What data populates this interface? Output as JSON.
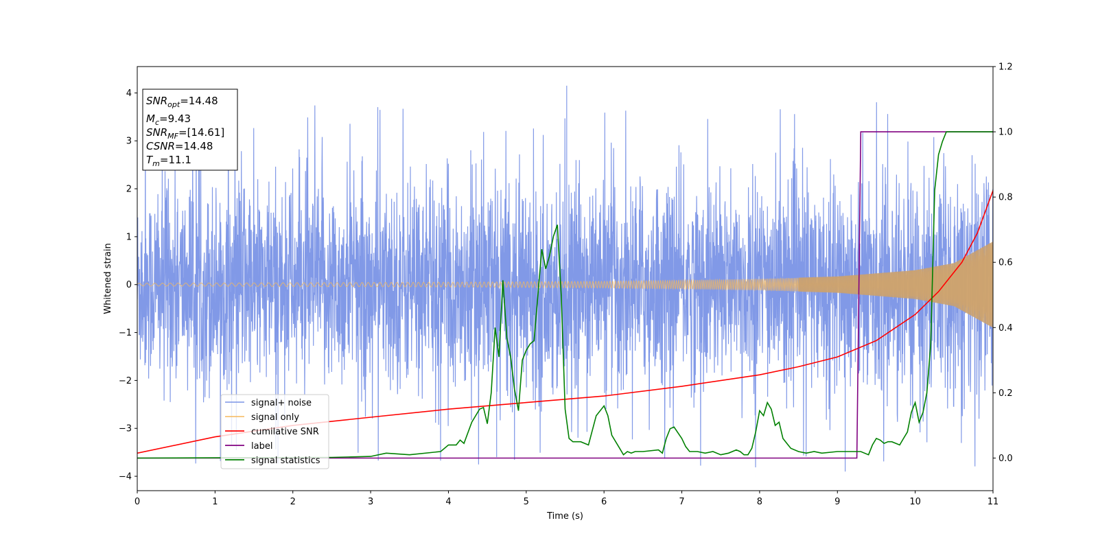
{
  "chart_data": {
    "type": "line",
    "xlabel": "Time (s)",
    "ylabel": "Whitened strain",
    "xlim": [
      0,
      11
    ],
    "ylim_left": [
      -4.3,
      4.55
    ],
    "ylim_right": [
      -0.1,
      1.2
    ],
    "x_ticks": [
      0,
      1,
      2,
      3,
      4,
      5,
      6,
      7,
      8,
      9,
      10,
      11
    ],
    "y_ticks_left": [
      -4,
      -3,
      -2,
      -1,
      0,
      1,
      2,
      3,
      4
    ],
    "y_ticks_right": [
      "0.0",
      "0.2",
      "0.4",
      "0.6",
      "0.8",
      "1.0",
      "1.2"
    ],
    "grid": false,
    "legend_position": "lower-left",
    "annotation": {
      "snr_opt": {
        "base": "SNR",
        "sub": "opt",
        "value": "=14.48"
      },
      "mc": {
        "base": "M",
        "sub": "c",
        "value": "=9.43"
      },
      "snr_mf": {
        "base": "SNR",
        "sub": "MF",
        "value": "=[14.61]"
      },
      "csnr": {
        "base": "CSNR",
        "sub": "",
        "value": "=14.48"
      },
      "tm": {
        "base": "T",
        "sub": "m",
        "value": "=11.1"
      }
    },
    "series": [
      {
        "name": "signal+ noise",
        "color": "#7a93e6",
        "axis": "left",
        "description_values": {
          "noise_sigma": 1.0,
          "typical_peak": 3.0,
          "max": 4.15,
          "min": -3.9
        }
      },
      {
        "name": "signal only",
        "color": "#f5b85c",
        "axis": "left",
        "envelope": {
          "x": [
            0,
            2,
            4,
            6,
            7,
            8,
            9,
            10,
            10.5,
            11
          ],
          "amplitude": [
            0.03,
            0.04,
            0.05,
            0.07,
            0.09,
            0.12,
            0.17,
            0.3,
            0.45,
            0.9
          ]
        }
      },
      {
        "name": "cumilative SNR",
        "color": "#ff0000",
        "axis": "right",
        "x": [
          0,
          1,
          2,
          3,
          4,
          5,
          6,
          7,
          8,
          8.5,
          9,
          9.5,
          10,
          10.3,
          10.6,
          10.8,
          11
        ],
        "values": [
          0.015,
          0.065,
          0.1,
          0.125,
          0.15,
          0.17,
          0.19,
          0.22,
          0.255,
          0.28,
          0.31,
          0.36,
          0.44,
          0.51,
          0.6,
          0.69,
          0.82
        ]
      },
      {
        "name": "label",
        "color": "#800080",
        "axis": "right",
        "x": [
          0,
          9.25,
          9.3,
          11
        ],
        "values": [
          0,
          0,
          1,
          1
        ]
      },
      {
        "name": "signal statistics",
        "color": "#008000",
        "axis": "right",
        "x": [
          0,
          2.5,
          3,
          3.2,
          3.5,
          3.9,
          4.0,
          4.1,
          4.15,
          4.2,
          4.3,
          4.4,
          4.45,
          4.5,
          4.55,
          4.6,
          4.65,
          4.7,
          4.75,
          4.8,
          4.85,
          4.9,
          4.95,
          5.0,
          5.05,
          5.1,
          5.2,
          5.25,
          5.3,
          5.35,
          5.4,
          5.45,
          5.5,
          5.55,
          5.6,
          5.7,
          5.8,
          5.9,
          6.0,
          6.05,
          6.1,
          6.2,
          6.25,
          6.3,
          6.35,
          6.4,
          6.5,
          6.7,
          6.75,
          6.8,
          6.85,
          6.9,
          7.0,
          7.05,
          7.1,
          7.2,
          7.3,
          7.4,
          7.5,
          7.6,
          7.7,
          7.75,
          7.8,
          7.85,
          7.9,
          7.95,
          8.0,
          8.05,
          8.1,
          8.15,
          8.2,
          8.25,
          8.3,
          8.4,
          8.5,
          8.6,
          8.7,
          8.8,
          9.0,
          9.2,
          9.3,
          9.4,
          9.45,
          9.5,
          9.55,
          9.6,
          9.65,
          9.7,
          9.8,
          9.85,
          9.9,
          9.95,
          10.0,
          10.05,
          10.1,
          10.15,
          10.2,
          10.25,
          10.3,
          10.35,
          10.4,
          10.5,
          10.6,
          10.8,
          11.0
        ],
        "values": [
          0,
          0.002,
          0.005,
          0.015,
          0.01,
          0.02,
          0.04,
          0.04,
          0.055,
          0.045,
          0.11,
          0.15,
          0.155,
          0.105,
          0.2,
          0.4,
          0.31,
          0.545,
          0.37,
          0.31,
          0.21,
          0.145,
          0.3,
          0.33,
          0.35,
          0.36,
          0.64,
          0.58,
          0.62,
          0.68,
          0.715,
          0.5,
          0.15,
          0.06,
          0.05,
          0.05,
          0.04,
          0.13,
          0.16,
          0.13,
          0.07,
          0.03,
          0.01,
          0.02,
          0.015,
          0.02,
          0.02,
          0.025,
          0.015,
          0.06,
          0.09,
          0.095,
          0.06,
          0.035,
          0.02,
          0.02,
          0.015,
          0.02,
          0.01,
          0.015,
          0.025,
          0.02,
          0.01,
          0.01,
          0.03,
          0.08,
          0.145,
          0.13,
          0.17,
          0.15,
          0.1,
          0.11,
          0.06,
          0.03,
          0.02,
          0.015,
          0.02,
          0.015,
          0.02,
          0.02,
          0.02,
          0.01,
          0.04,
          0.06,
          0.055,
          0.045,
          0.05,
          0.05,
          0.04,
          0.06,
          0.08,
          0.14,
          0.17,
          0.11,
          0.14,
          0.2,
          0.35,
          0.82,
          0.93,
          0.97,
          1.0,
          1.0,
          1.0,
          1.0,
          1.0
        ]
      }
    ]
  }
}
